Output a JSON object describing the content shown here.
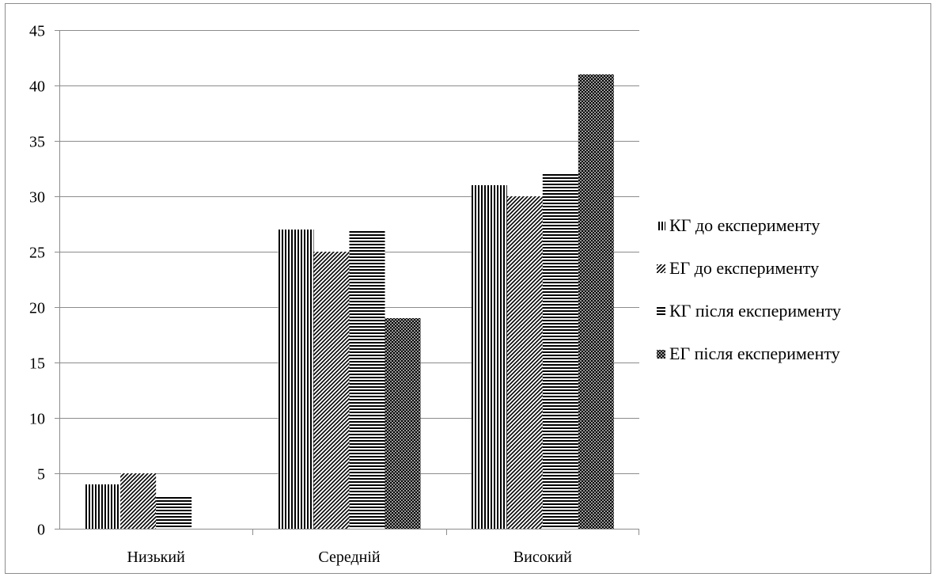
{
  "chart_data": {
    "type": "bar",
    "title": "",
    "xlabel": "",
    "ylabel": "",
    "categories": [
      "Низький",
      "Середній",
      "Високий"
    ],
    "ylim": [
      0,
      45
    ],
    "yticks": [
      0,
      5,
      10,
      15,
      20,
      25,
      30,
      35,
      40,
      45
    ],
    "grid": true,
    "legend_position": "right",
    "series": [
      {
        "name": "КГ до експерименту",
        "pattern": "vertical-lines",
        "values": [
          4,
          27,
          31
        ]
      },
      {
        "name": "ЕГ до експерименту",
        "pattern": "diagonal-lines",
        "values": [
          5,
          25,
          30
        ]
      },
      {
        "name": "КГ після експерименту",
        "pattern": "horizontal-lines",
        "values": [
          3,
          27,
          32
        ]
      },
      {
        "name": "ЕГ після експерименту",
        "pattern": "crosshatch",
        "values": [
          0,
          19,
          41
        ]
      }
    ],
    "colors": {
      "ink": "#000000",
      "grid": "#8c8c8c",
      "axis": "#8c8c8c"
    }
  }
}
